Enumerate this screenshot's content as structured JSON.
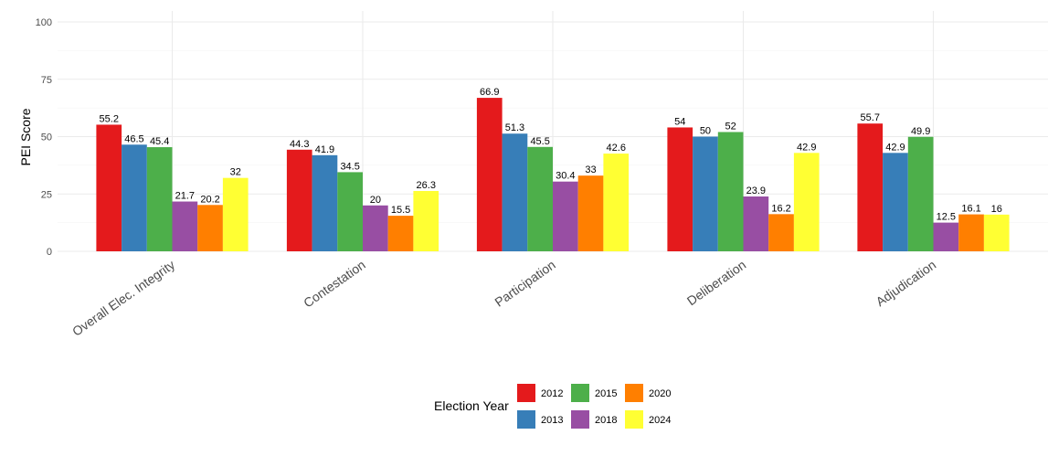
{
  "chart_data": {
    "type": "bar",
    "ylabel": "PEI Score",
    "ylim": [
      0,
      100
    ],
    "yticks": [
      "0",
      "25",
      "50",
      "75",
      "100"
    ],
    "grid": true,
    "legend_title": "Election Year",
    "legend_position": "bottom",
    "categories": [
      "Overall Elec. Integrity",
      "Contestation",
      "Participation",
      "Deliberation",
      "Adjudication"
    ],
    "series": [
      {
        "name": "2012",
        "color": "#e41a1c",
        "values": [
          55.2,
          44.3,
          66.9,
          54,
          55.7
        ]
      },
      {
        "name": "2013",
        "color": "#377eb8",
        "values": [
          46.5,
          41.9,
          51.3,
          50,
          42.9
        ]
      },
      {
        "name": "2015",
        "color": "#4daf4a",
        "values": [
          45.4,
          34.5,
          45.5,
          52,
          49.9
        ]
      },
      {
        "name": "2018",
        "color": "#984ea3",
        "values": [
          21.7,
          20,
          30.4,
          23.9,
          12.5
        ]
      },
      {
        "name": "2020",
        "color": "#ff7f00",
        "values": [
          20.2,
          15.5,
          33,
          16.2,
          16.1
        ]
      },
      {
        "name": "2024",
        "color": "#ffff33",
        "values": [
          32,
          26.3,
          42.6,
          42.9,
          16
        ]
      }
    ]
  }
}
